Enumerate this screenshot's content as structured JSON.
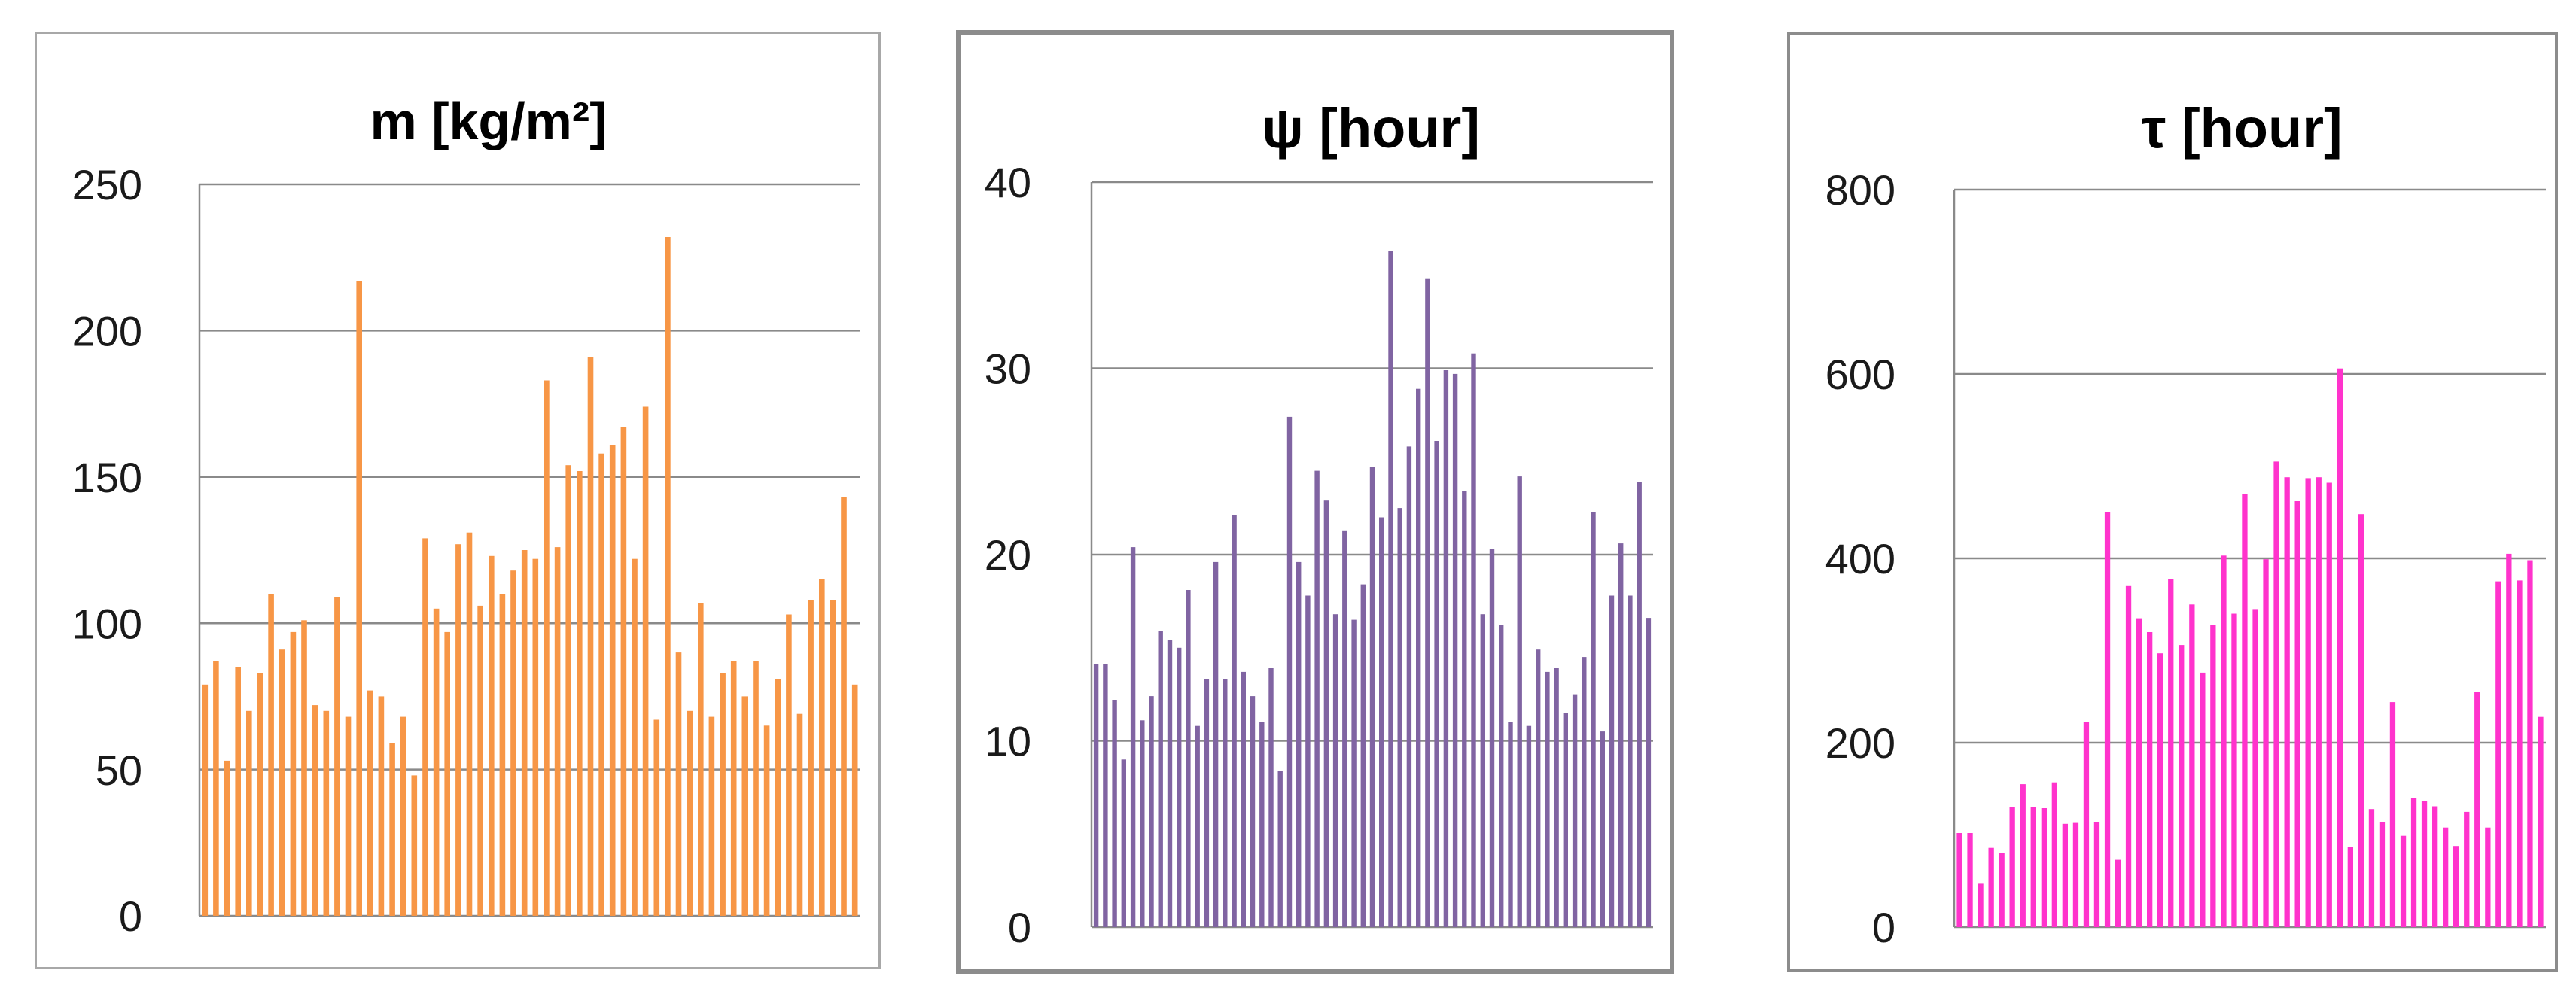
{
  "chart_data": [
    {
      "type": "bar",
      "title": "m [kg/m²]",
      "xlabel": "",
      "ylabel": "",
      "ylim": [
        0,
        250
      ],
      "yticks": [
        "0",
        "50",
        "100",
        "150",
        "200",
        "250"
      ],
      "grid": true,
      "color": "#F79646",
      "values": [
        79,
        87,
        53,
        85,
        70,
        83,
        110,
        91,
        97,
        101,
        72,
        70,
        109,
        68,
        217,
        77,
        75,
        59,
        68,
        48,
        129,
        105,
        97,
        127,
        131,
        106,
        123,
        110,
        118,
        125,
        122,
        183,
        126,
        154,
        152,
        191,
        158,
        161,
        167,
        122,
        174,
        67,
        232,
        90,
        70,
        107,
        68,
        83,
        87,
        75,
        87,
        65,
        81,
        103,
        69,
        108,
        115,
        108,
        143,
        79
      ]
    },
    {
      "type": "bar",
      "title": "ψ [hour]",
      "xlabel": "",
      "ylabel": "",
      "ylim": [
        0,
        40
      ],
      "yticks": [
        "0",
        "10",
        "20",
        "30",
        "40"
      ],
      "grid": true,
      "color": "#8064A2",
      "values": [
        14.1,
        14.1,
        12.2,
        9.0,
        20.4,
        11.1,
        12.4,
        15.9,
        15.4,
        15.0,
        18.1,
        10.8,
        13.3,
        19.6,
        13.3,
        22.1,
        13.7,
        12.4,
        11.0,
        13.9,
        8.4,
        27.4,
        19.6,
        17.8,
        24.5,
        22.9,
        16.8,
        21.3,
        16.5,
        18.4,
        24.7,
        22.0,
        36.3,
        22.5,
        25.8,
        28.9,
        34.8,
        26.1,
        29.9,
        29.7,
        23.4,
        30.8,
        16.8,
        20.3,
        16.2,
        11.0,
        24.2,
        10.8,
        14.9,
        13.7,
        13.9,
        11.5,
        12.5,
        14.5,
        22.3,
        10.5,
        17.8,
        20.6,
        17.8,
        23.9,
        16.6
      ]
    },
    {
      "type": "bar",
      "title": "τ [hour]",
      "xlabel": "",
      "ylabel": "",
      "ylim": [
        0,
        800
      ],
      "yticks": [
        "0",
        "200",
        "400",
        "600",
        "800"
      ],
      "grid": true,
      "color": "#FF33CC",
      "values": [
        102,
        102,
        47,
        86,
        80,
        130,
        155,
        130,
        129,
        157,
        112,
        113,
        222,
        114,
        450,
        73,
        370,
        335,
        320,
        297,
        378,
        306,
        350,
        276,
        328,
        403,
        340,
        470,
        345,
        399,
        505,
        488,
        462,
        487,
        488,
        482,
        606,
        87,
        448,
        128,
        114,
        244,
        99,
        140,
        137,
        131,
        108,
        88,
        125,
        255,
        108,
        375,
        405,
        376,
        398,
        228
      ]
    }
  ]
}
